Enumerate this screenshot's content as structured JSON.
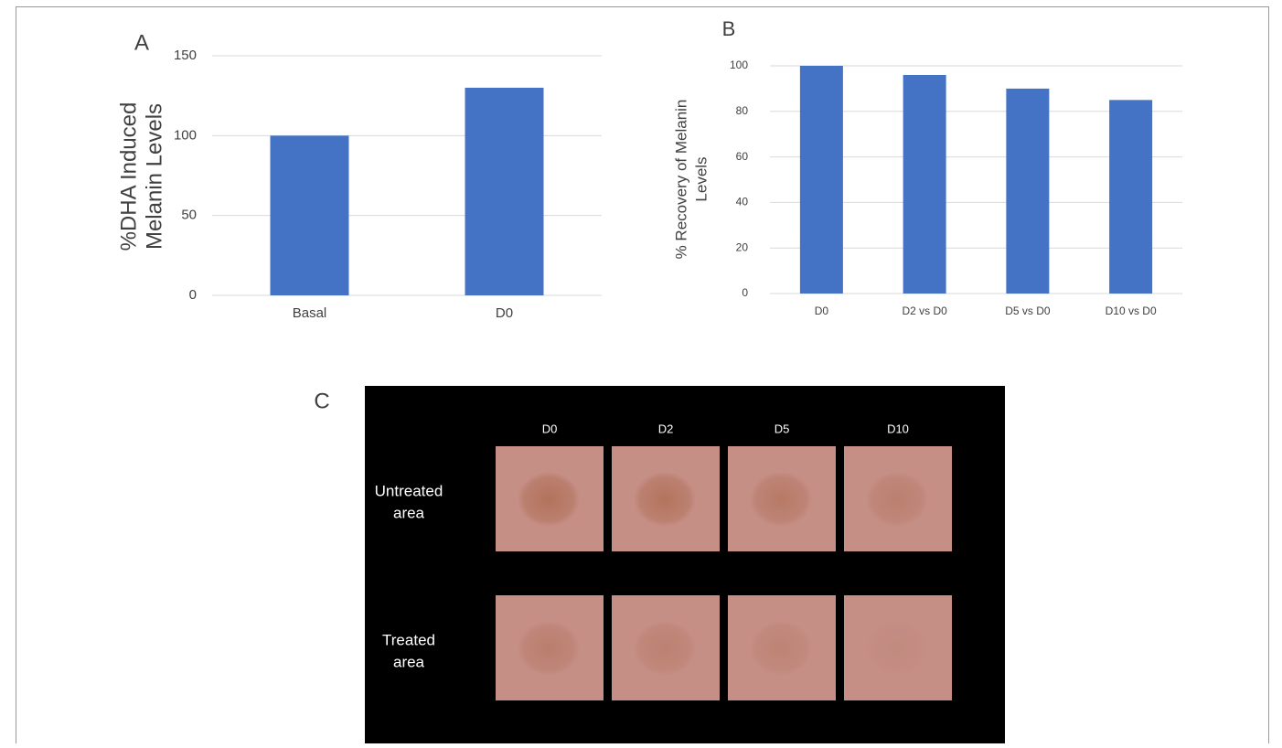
{
  "chart_data": [
    {
      "type": "bar",
      "panel_label": "A",
      "ylabel": [
        "%DHA Induced",
        "Melanin Levels"
      ],
      "categories": [
        "Basal",
        "D0"
      ],
      "values": [
        100,
        130
      ],
      "color": "#4472c4",
      "ylim": [
        0,
        150
      ],
      "yticks": [
        0,
        50,
        100,
        150
      ],
      "grid": true
    },
    {
      "type": "bar",
      "panel_label": "B",
      "ylabel": [
        "% Recovery of Melanin",
        "Levels"
      ],
      "categories": [
        "D0",
        "D2 vs D0",
        "D5 vs D0",
        "D10 vs D0"
      ],
      "values": [
        100,
        96,
        90,
        85
      ],
      "color": "#4472c4",
      "ylim": [
        0,
        100
      ],
      "yticks": [
        0,
        20,
        40,
        60,
        80,
        100
      ],
      "grid": true
    }
  ],
  "panel_c": {
    "panel_label": "C",
    "columns": [
      "D0",
      "D2",
      "D5",
      "D10"
    ],
    "rows": [
      [
        "Untreated",
        "area"
      ],
      [
        "Treated",
        "area"
      ]
    ]
  }
}
